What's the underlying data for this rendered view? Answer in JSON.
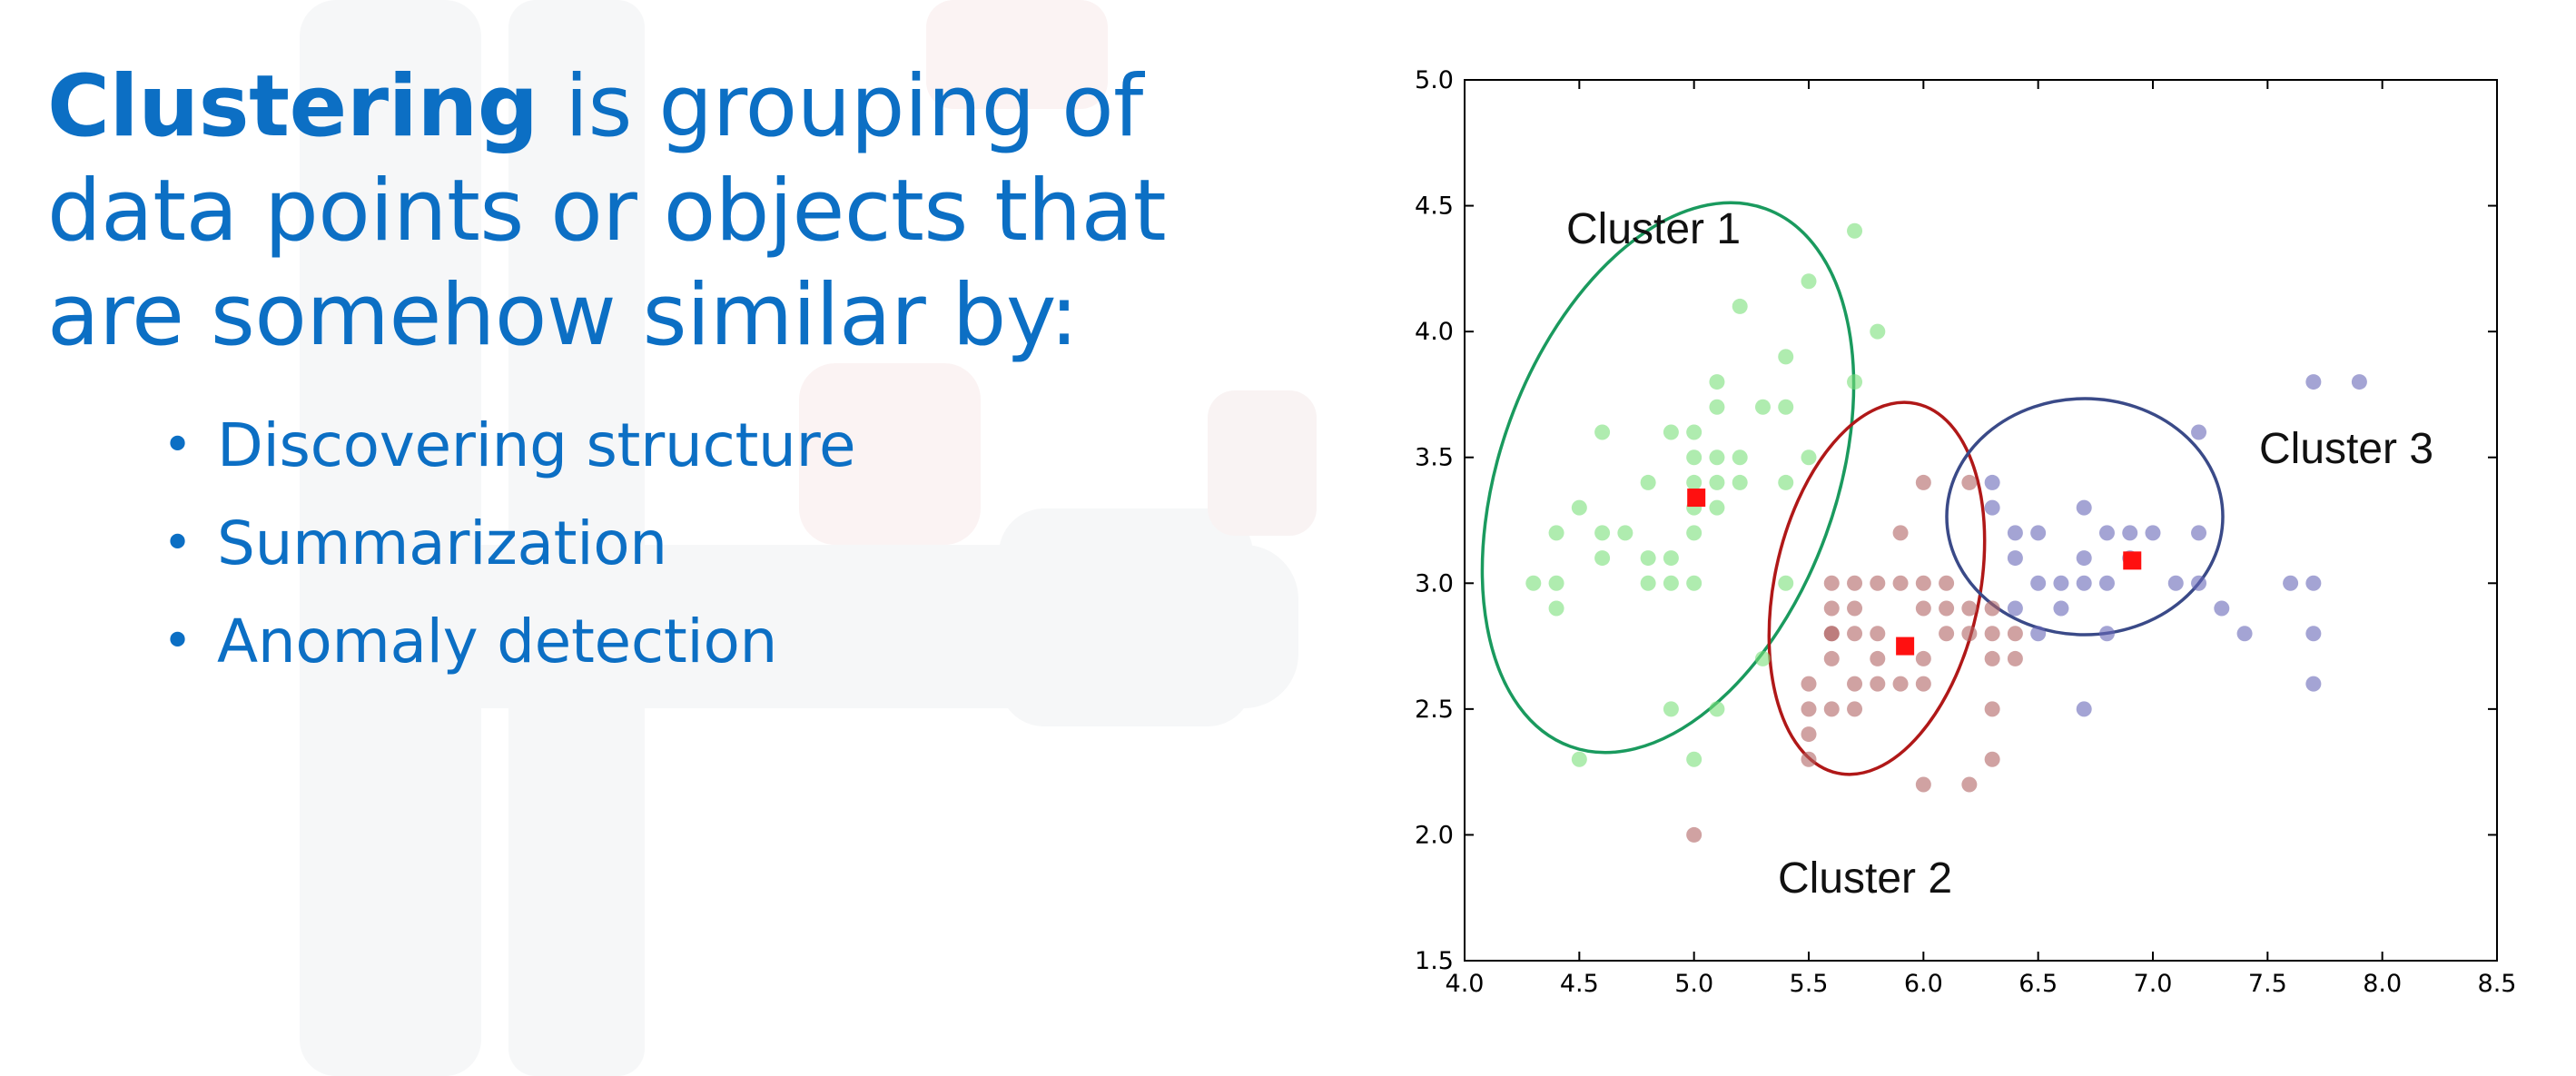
{
  "slide": {
    "heading_bold": "Clustering",
    "heading_rest": " is grouping of data points or objects that are somehow similar by:",
    "bullets": [
      {
        "label": "Discovering structure"
      },
      {
        "label": "Summarization"
      },
      {
        "label": "Anomaly detection"
      }
    ],
    "text_color": "#0c6fc4"
  },
  "chart_data": {
    "type": "scatter",
    "xlim": [
      4.0,
      8.5
    ],
    "ylim": [
      1.5,
      5.0
    ],
    "x_ticks": [
      "4.0",
      "4.5",
      "5.0",
      "5.5",
      "6.0",
      "6.5",
      "7.0",
      "7.5",
      "8.0",
      "8.5"
    ],
    "y_ticks": [
      "1.5",
      "2.0",
      "2.5",
      "3.0",
      "3.5",
      "4.0",
      "4.5",
      "5.0"
    ],
    "grid": false,
    "series": [
      {
        "color": "#7ae07a",
        "points": [
          [
            4.3,
            3.0
          ],
          [
            4.4,
            2.9
          ],
          [
            4.4,
            3.0
          ],
          [
            4.4,
            3.2
          ],
          [
            4.5,
            2.3
          ],
          [
            4.6,
            3.1
          ],
          [
            4.6,
            3.2
          ],
          [
            4.7,
            3.2
          ],
          [
            4.8,
            3.0
          ],
          [
            4.8,
            3.1
          ],
          [
            4.8,
            3.4
          ],
          [
            4.9,
            2.5
          ],
          [
            4.9,
            3.0
          ],
          [
            4.9,
            3.1
          ],
          [
            5.0,
            2.3
          ],
          [
            5.0,
            3.0
          ],
          [
            5.0,
            3.2
          ],
          [
            5.0,
            3.3
          ],
          [
            5.0,
            3.4
          ],
          [
            5.0,
            3.5
          ],
          [
            5.0,
            3.6
          ],
          [
            5.1,
            3.3
          ],
          [
            5.1,
            3.4
          ],
          [
            5.1,
            3.5
          ],
          [
            5.1,
            3.7
          ],
          [
            5.1,
            3.8
          ],
          [
            5.2,
            3.4
          ],
          [
            5.2,
            3.5
          ],
          [
            5.2,
            4.1
          ],
          [
            5.3,
            3.7
          ],
          [
            5.4,
            3.4
          ],
          [
            5.4,
            3.7
          ],
          [
            5.4,
            3.9
          ],
          [
            5.5,
            3.5
          ],
          [
            5.5,
            4.2
          ],
          [
            5.7,
            3.8
          ],
          [
            5.7,
            4.4
          ],
          [
            5.8,
            4.0
          ],
          [
            4.5,
            3.3
          ],
          [
            4.9,
            3.6
          ],
          [
            5.3,
            2.7
          ],
          [
            5.1,
            2.5
          ],
          [
            4.6,
            3.6
          ],
          [
            5.4,
            3.0
          ]
        ]
      },
      {
        "color": "#b06464",
        "points": [
          [
            5.0,
            2.0
          ],
          [
            5.5,
            2.3
          ],
          [
            5.5,
            2.4
          ],
          [
            5.5,
            2.5
          ],
          [
            5.5,
            2.6
          ],
          [
            5.6,
            2.5
          ],
          [
            5.6,
            2.7
          ],
          [
            5.6,
            2.8
          ],
          [
            5.6,
            2.9
          ],
          [
            5.6,
            3.0
          ],
          [
            5.7,
            2.5
          ],
          [
            5.7,
            2.6
          ],
          [
            5.7,
            2.8
          ],
          [
            5.7,
            2.9
          ],
          [
            5.7,
            3.0
          ],
          [
            5.8,
            2.6
          ],
          [
            5.8,
            2.7
          ],
          [
            5.8,
            2.8
          ],
          [
            5.8,
            3.0
          ],
          [
            5.9,
            3.0
          ],
          [
            5.9,
            3.2
          ],
          [
            6.0,
            2.2
          ],
          [
            6.0,
            2.7
          ],
          [
            6.0,
            2.9
          ],
          [
            6.0,
            3.0
          ],
          [
            6.0,
            3.4
          ],
          [
            6.1,
            2.8
          ],
          [
            6.1,
            2.9
          ],
          [
            6.1,
            3.0
          ],
          [
            6.2,
            2.2
          ],
          [
            6.2,
            2.8
          ],
          [
            6.2,
            2.9
          ],
          [
            6.3,
            2.3
          ],
          [
            6.3,
            2.5
          ],
          [
            6.3,
            2.7
          ],
          [
            6.3,
            2.8
          ],
          [
            6.3,
            2.9
          ],
          [
            6.4,
            2.7
          ],
          [
            6.4,
            2.8
          ],
          [
            5.9,
            2.6
          ],
          [
            6.2,
            3.4
          ],
          [
            5.6,
            2.8
          ],
          [
            6.0,
            2.6
          ]
        ]
      },
      {
        "color": "#6868b8",
        "points": [
          [
            6.3,
            3.3
          ],
          [
            6.3,
            3.4
          ],
          [
            6.4,
            3.1
          ],
          [
            6.4,
            3.2
          ],
          [
            6.5,
            2.8
          ],
          [
            6.5,
            3.0
          ],
          [
            6.5,
            3.2
          ],
          [
            6.6,
            3.0
          ],
          [
            6.7,
            2.5
          ],
          [
            6.7,
            3.0
          ],
          [
            6.7,
            3.1
          ],
          [
            6.7,
            3.3
          ],
          [
            6.8,
            2.8
          ],
          [
            6.8,
            3.0
          ],
          [
            6.8,
            3.2
          ],
          [
            6.9,
            3.1
          ],
          [
            6.9,
            3.2
          ],
          [
            7.0,
            3.2
          ],
          [
            7.1,
            3.0
          ],
          [
            7.2,
            3.0
          ],
          [
            7.2,
            3.2
          ],
          [
            7.2,
            3.6
          ],
          [
            7.3,
            2.9
          ],
          [
            7.4,
            2.8
          ],
          [
            7.6,
            3.0
          ],
          [
            7.7,
            2.6
          ],
          [
            7.7,
            2.8
          ],
          [
            7.7,
            3.0
          ],
          [
            7.7,
            3.8
          ],
          [
            7.9,
            3.8
          ],
          [
            6.6,
            2.9
          ],
          [
            6.4,
            2.9
          ]
        ]
      }
    ],
    "centroids": {
      "color": "#ff1010",
      "points": [
        [
          5.01,
          3.34
        ],
        [
          5.92,
          2.75
        ],
        [
          6.91,
          3.09
        ]
      ]
    },
    "ellipses": [
      {
        "color": "#1a9a5e"
      },
      {
        "color": "#b01818"
      },
      {
        "color": "#3a4a88"
      }
    ],
    "annotations": [
      {
        "text": "Cluster 1"
      },
      {
        "text": "Cluster 2"
      },
      {
        "text": "Cluster 3"
      }
    ]
  }
}
